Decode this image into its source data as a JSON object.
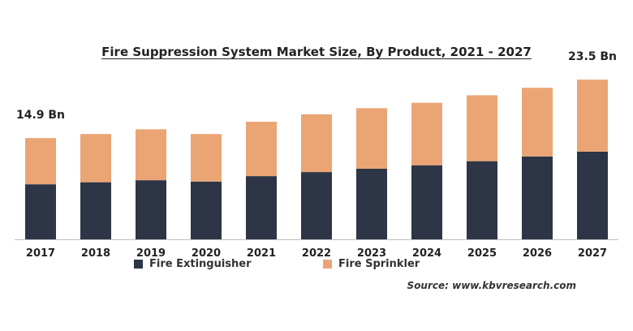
{
  "chart_data": {
    "type": "bar",
    "stacked": true,
    "title": "Fire Suppression System Market Size, By Product, 2021 - 2027",
    "categories": [
      "2017",
      "2018",
      "2019",
      "2020",
      "2021",
      "2022",
      "2023",
      "2024",
      "2025",
      "2026",
      "2027"
    ],
    "series": [
      {
        "name": "Fire Extinguisher",
        "color": "#2d3546",
        "values": [
          8.1,
          8.4,
          8.7,
          8.5,
          9.3,
          9.9,
          10.4,
          10.9,
          11.5,
          12.2,
          12.9
        ]
      },
      {
        "name": "Fire Sprinkler",
        "color": "#eba575",
        "values": [
          6.8,
          7.1,
          7.5,
          7.0,
          8.0,
          8.5,
          8.9,
          9.2,
          9.7,
          10.1,
          10.6
        ]
      }
    ],
    "data_labels": [
      {
        "category": "2017",
        "text": "14.9 Bn"
      },
      {
        "category": "2027",
        "text": "23.5 Bn"
      }
    ],
    "ylim": [
      0,
      24
    ],
    "grid": false,
    "legend_position": "bottom-left"
  },
  "source": "Source: www.kbvresearch.com"
}
